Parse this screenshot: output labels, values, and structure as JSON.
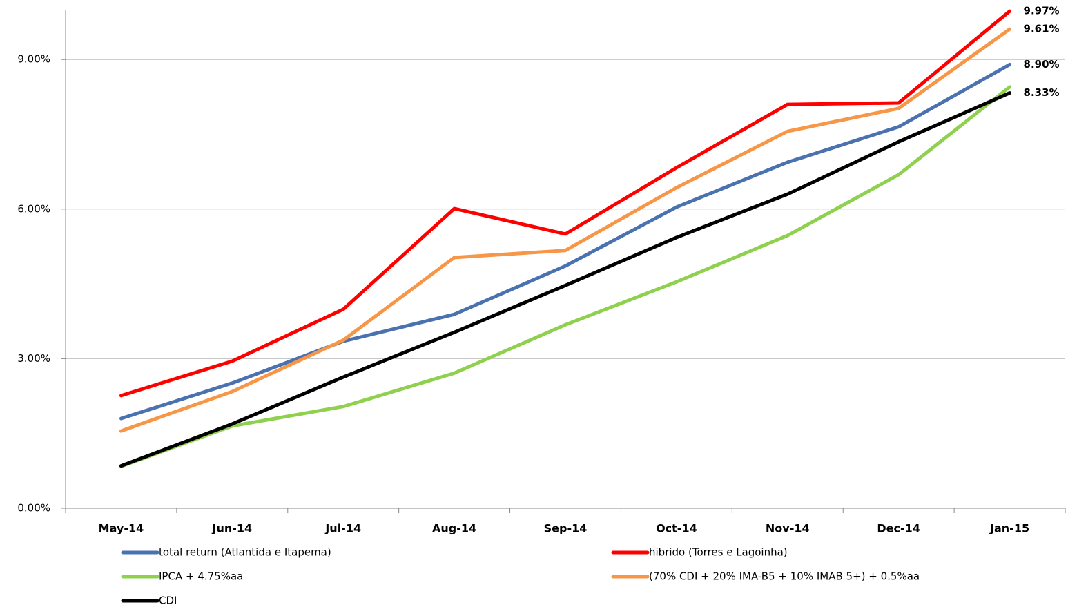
{
  "chart_data": {
    "type": "line",
    "categories": [
      "May-14",
      "Jun-14",
      "Jul-14",
      "Aug-14",
      "Sep-14",
      "Oct-14",
      "Nov-14",
      "Dec-14",
      "Jan-15"
    ],
    "ylim": [
      0,
      10
    ],
    "yticks": [
      {
        "value": 0,
        "label": "0.00%"
      },
      {
        "value": 3,
        "label": "3.00%"
      },
      {
        "value": 6,
        "label": "6.00%"
      },
      {
        "value": 9,
        "label": "9.00%"
      }
    ],
    "grid": true,
    "legend": "bottom",
    "series": [
      {
        "name": "total return (Atlantida e Itapema)",
        "color": "#4a72b0",
        "values": [
          1.8,
          2.51,
          3.35,
          3.89,
          4.86,
          6.04,
          6.94,
          7.65,
          8.9
        ],
        "value_labels": [
          null,
          null,
          null,
          null,
          null,
          null,
          null,
          null,
          "8.90%"
        ]
      },
      {
        "name": "hibrido (Torres e Lagoinha)",
        "color": "#ff0000",
        "values": [
          2.26,
          2.95,
          3.99,
          6.01,
          5.5,
          6.83,
          8.1,
          8.13,
          9.97
        ],
        "value_labels": [
          null,
          null,
          null,
          null,
          null,
          null,
          null,
          null,
          "9.97%"
        ]
      },
      {
        "name": "IPCA + 4.75%aa",
        "color": "#8fd14f",
        "values": [
          0.84,
          1.65,
          2.04,
          2.71,
          3.68,
          4.54,
          5.47,
          6.69,
          8.45
        ]
      },
      {
        "name": "(70% CDI + 20% IMA-B5 + 10% IMAB 5+) + 0.5%aa",
        "color": "#f79646",
        "values": [
          1.55,
          2.34,
          3.37,
          5.03,
          5.17,
          6.43,
          7.56,
          8.02,
          9.61
        ],
        "value_labels": [
          null,
          null,
          null,
          null,
          null,
          null,
          null,
          null,
          "9.61%"
        ]
      },
      {
        "name": "CDI",
        "color": "#000000",
        "values": [
          0.85,
          1.69,
          2.63,
          3.53,
          4.47,
          5.43,
          6.3,
          7.35,
          8.33
        ],
        "value_labels": [
          null,
          null,
          null,
          null,
          null,
          null,
          null,
          null,
          "8.33%"
        ]
      }
    ]
  }
}
